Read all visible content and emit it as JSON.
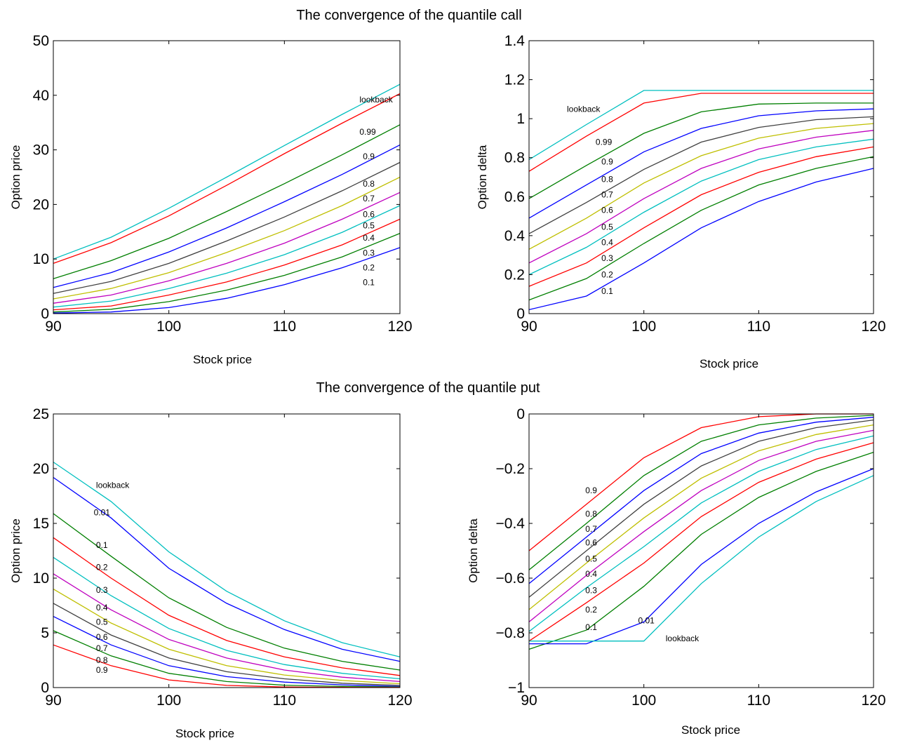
{
  "figure": {
    "title_call": "The convergence of the quantile call",
    "title_put": "The convergence of the quantile put"
  },
  "colors": {
    "cyan": "#00BFBF",
    "red": "#FF0000",
    "green": "#007F00",
    "blue": "#0000FF",
    "gray": "#404040",
    "yellow": "#BFBF00",
    "magenta": "#BF00BF"
  },
  "chart_data": [
    {
      "type": "line",
      "xlabel": "Stock price",
      "ylabel": "Option price",
      "xlim": [
        90,
        120
      ],
      "ylim": [
        0,
        50
      ],
      "xticks": [
        "90",
        "100",
        "110",
        "120"
      ],
      "yticks": [
        "0",
        "10",
        "20",
        "30",
        "40",
        "50"
      ],
      "x": [
        90,
        95,
        100,
        105,
        110,
        115,
        120
      ],
      "series": [
        {
          "name": "lookback",
          "color": "#00BFBF",
          "values": [
            10.0,
            14.0,
            19.3,
            25.0,
            30.8,
            36.5,
            42.0
          ]
        },
        {
          "name": "0.99",
          "color": "#FF0000",
          "values": [
            9.2,
            13.0,
            17.9,
            23.5,
            29.3,
            34.9,
            40.3
          ]
        },
        {
          "name": "0.9",
          "color": "#007F00",
          "values": [
            6.4,
            9.7,
            13.8,
            18.7,
            23.8,
            29.1,
            34.6
          ]
        },
        {
          "name": "0.8",
          "color": "#0000FF",
          "values": [
            4.8,
            7.5,
            11.3,
            15.7,
            20.5,
            25.5,
            30.9
          ]
        },
        {
          "name": "0.7",
          "color": "#404040",
          "values": [
            3.7,
            5.9,
            9.2,
            13.3,
            17.7,
            22.5,
            27.7
          ]
        },
        {
          "name": "0.6",
          "color": "#BFBF00",
          "values": [
            2.7,
            4.6,
            7.5,
            11.2,
            15.2,
            19.8,
            25.0
          ]
        },
        {
          "name": "0.5",
          "color": "#BF00BF",
          "values": [
            1.9,
            3.4,
            6.0,
            9.2,
            12.9,
            17.3,
            22.2
          ]
        },
        {
          "name": "0.4",
          "color": "#00BFBF",
          "values": [
            1.2,
            2.3,
            4.6,
            7.4,
            10.8,
            14.9,
            19.8
          ]
        },
        {
          "name": "0.3",
          "color": "#FF0000",
          "values": [
            0.7,
            1.4,
            3.4,
            5.8,
            8.9,
            12.6,
            17.3
          ]
        },
        {
          "name": "0.2",
          "color": "#007F00",
          "values": [
            0.3,
            0.8,
            2.2,
            4.3,
            7.0,
            10.4,
            14.7
          ]
        },
        {
          "name": "0.1",
          "color": "#0000FF",
          "values": [
            0.1,
            0.3,
            1.1,
            2.8,
            5.3,
            8.4,
            12.1
          ]
        }
      ],
      "curve_labels": [
        {
          "text": "lookback",
          "x": 116.5,
          "y": 39.2
        },
        {
          "text": "0.99",
          "x": 116.5,
          "y": 33.3
        },
        {
          "text": "0.9",
          "x": 116.8,
          "y": 28.8
        },
        {
          "text": "0.8",
          "x": 116.8,
          "y": 23.8
        },
        {
          "text": "0.7",
          "x": 116.8,
          "y": 21.1
        },
        {
          "text": "0.6",
          "x": 116.8,
          "y": 18.2
        },
        {
          "text": "0.5",
          "x": 116.8,
          "y": 16.1
        },
        {
          "text": "0.4",
          "x": 116.8,
          "y": 13.9
        },
        {
          "text": "0.3",
          "x": 116.8,
          "y": 11.1
        },
        {
          "text": "0.2",
          "x": 116.8,
          "y": 8.4
        },
        {
          "text": "0.1",
          "x": 116.8,
          "y": 5.7
        }
      ]
    },
    {
      "type": "line",
      "xlabel": "Stock price",
      "ylabel": "Option delta",
      "xlim": [
        90,
        120
      ],
      "ylim": [
        0,
        1.4
      ],
      "xticks": [
        "90",
        "100",
        "110",
        "120"
      ],
      "yticks": [
        "0",
        "0.2",
        "0.4",
        "0.6",
        "0.8",
        "1",
        "1.2",
        "1.4"
      ],
      "x": [
        90,
        95,
        100,
        105,
        110,
        115,
        120
      ],
      "series": [
        {
          "name": "lookback",
          "color": "#00BFBF",
          "values": [
            0.79,
            0.97,
            1.145,
            1.145,
            1.145,
            1.145,
            1.145
          ]
        },
        {
          "name": "0.99",
          "color": "#FF0000",
          "values": [
            0.73,
            0.91,
            1.08,
            1.13,
            1.13,
            1.13,
            1.13
          ]
        },
        {
          "name": "0.9",
          "color": "#007F00",
          "values": [
            0.59,
            0.76,
            0.925,
            1.035,
            1.075,
            1.08,
            1.08
          ]
        },
        {
          "name": "0.8",
          "color": "#0000FF",
          "values": [
            0.49,
            0.66,
            0.83,
            0.95,
            1.015,
            1.04,
            1.05
          ]
        },
        {
          "name": "0.7",
          "color": "#404040",
          "values": [
            0.41,
            0.57,
            0.74,
            0.88,
            0.955,
            0.995,
            1.01
          ]
        },
        {
          "name": "0.6",
          "color": "#BFBF00",
          "values": [
            0.33,
            0.49,
            0.67,
            0.81,
            0.9,
            0.95,
            0.975
          ]
        },
        {
          "name": "0.5",
          "color": "#BF00BF",
          "values": [
            0.26,
            0.41,
            0.59,
            0.745,
            0.845,
            0.905,
            0.94
          ]
        },
        {
          "name": "0.4",
          "color": "#00BFBF",
          "values": [
            0.2,
            0.34,
            0.52,
            0.68,
            0.79,
            0.855,
            0.895
          ]
        },
        {
          "name": "0.3",
          "color": "#FF0000",
          "values": [
            0.14,
            0.26,
            0.44,
            0.61,
            0.725,
            0.805,
            0.855
          ]
        },
        {
          "name": "0.2",
          "color": "#007F00",
          "values": [
            0.07,
            0.18,
            0.36,
            0.53,
            0.66,
            0.745,
            0.805
          ]
        },
        {
          "name": "0.1",
          "color": "#0000FF",
          "values": [
            0.02,
            0.09,
            0.26,
            0.44,
            0.575,
            0.675,
            0.745
          ]
        }
      ],
      "curve_labels": [
        {
          "text": "lookback",
          "x": 93.3,
          "y": 1.05
        },
        {
          "text": "0.99",
          "x": 95.8,
          "y": 0.88
        },
        {
          "text": "0.9",
          "x": 96.3,
          "y": 0.78
        },
        {
          "text": "0.8",
          "x": 96.3,
          "y": 0.69
        },
        {
          "text": "0.7",
          "x": 96.3,
          "y": 0.61
        },
        {
          "text": "0.6",
          "x": 96.3,
          "y": 0.53
        },
        {
          "text": "0.5",
          "x": 96.3,
          "y": 0.445
        },
        {
          "text": "0.4",
          "x": 96.3,
          "y": 0.365
        },
        {
          "text": "0.3",
          "x": 96.3,
          "y": 0.285
        },
        {
          "text": "0.2",
          "x": 96.3,
          "y": 0.2
        },
        {
          "text": "0.1",
          "x": 96.3,
          "y": 0.115
        }
      ]
    },
    {
      "type": "line",
      "xlabel": "Stock price",
      "ylabel": "Option price",
      "xlim": [
        90,
        120
      ],
      "ylim": [
        0,
        25
      ],
      "xticks": [
        "90",
        "100",
        "110",
        "120"
      ],
      "yticks": [
        "0",
        "5",
        "10",
        "15",
        "20",
        "25"
      ],
      "x": [
        90,
        95,
        100,
        105,
        110,
        115,
        120
      ],
      "series": [
        {
          "name": "lookback",
          "color": "#00BFBF",
          "values": [
            20.6,
            17.0,
            12.4,
            8.8,
            6.1,
            4.1,
            2.8
          ]
        },
        {
          "name": "0.01",
          "color": "#0000FF",
          "values": [
            19.2,
            15.5,
            10.9,
            7.7,
            5.3,
            3.5,
            2.4
          ]
        },
        {
          "name": "0.1",
          "color": "#007F00",
          "values": [
            15.9,
            12.0,
            8.2,
            5.5,
            3.6,
            2.4,
            1.6
          ]
        },
        {
          "name": "0.2",
          "color": "#FF0000",
          "values": [
            13.7,
            10.0,
            6.6,
            4.3,
            2.8,
            1.8,
            1.1
          ]
        },
        {
          "name": "0.3",
          "color": "#00BFBF",
          "values": [
            11.9,
            8.4,
            5.4,
            3.4,
            2.1,
            1.3,
            0.8
          ]
        },
        {
          "name": "0.4",
          "color": "#BF00BF",
          "values": [
            10.4,
            7.1,
            4.4,
            2.7,
            1.6,
            0.95,
            0.55
          ]
        },
        {
          "name": "0.5",
          "color": "#BFBF00",
          "values": [
            9.0,
            5.9,
            3.5,
            2.0,
            1.15,
            0.65,
            0.35
          ]
        },
        {
          "name": "0.6",
          "color": "#404040",
          "values": [
            7.7,
            4.8,
            2.7,
            1.45,
            0.8,
            0.4,
            0.2
          ]
        },
        {
          "name": "0.7",
          "color": "#0000FF",
          "values": [
            6.5,
            3.9,
            2.0,
            1.0,
            0.5,
            0.25,
            0.1
          ]
        },
        {
          "name": "0.8",
          "color": "#007F00",
          "values": [
            5.2,
            2.9,
            1.3,
            0.55,
            0.22,
            0.1,
            0.05
          ]
        },
        {
          "name": "0.9",
          "color": "#FF0000",
          "values": [
            3.9,
            2.0,
            0.7,
            0.2,
            0.05,
            0.02,
            0.01
          ]
        }
      ],
      "curve_labels": [
        {
          "text": "lookback",
          "x": 93.7,
          "y": 18.5
        },
        {
          "text": "0.01",
          "x": 93.5,
          "y": 16.0
        },
        {
          "text": "0.1",
          "x": 93.7,
          "y": 13.0
        },
        {
          "text": "0.2",
          "x": 93.7,
          "y": 11.0
        },
        {
          "text": "0.3",
          "x": 93.7,
          "y": 8.9
        },
        {
          "text": "0.4",
          "x": 93.7,
          "y": 7.3
        },
        {
          "text": "0.5",
          "x": 93.7,
          "y": 6.0
        },
        {
          "text": "0.6",
          "x": 93.7,
          "y": 4.6
        },
        {
          "text": "0.7",
          "x": 93.7,
          "y": 3.6
        },
        {
          "text": "0.8",
          "x": 93.7,
          "y": 2.5
        },
        {
          "text": "0.9",
          "x": 93.7,
          "y": 1.6
        }
      ]
    },
    {
      "type": "line",
      "xlabel": "Stock price",
      "ylabel": "Option delta",
      "xlim": [
        90,
        120
      ],
      "ylim": [
        -1,
        0
      ],
      "xticks": [
        "90",
        "100",
        "110",
        "120"
      ],
      "yticks": [
        "−1",
        "−0.8",
        "−0.6",
        "−0.4",
        "−0.2",
        "0"
      ],
      "x": [
        90,
        95,
        100,
        105,
        110,
        115,
        120
      ],
      "series": [
        {
          "name": "0.9",
          "color": "#FF0000",
          "values": [
            -0.5,
            -0.33,
            -0.16,
            -0.05,
            -0.01,
            0.0,
            0.0
          ]
        },
        {
          "name": "0.8",
          "color": "#007F00",
          "values": [
            -0.57,
            -0.4,
            -0.225,
            -0.1,
            -0.04,
            -0.015,
            -0.005
          ]
        },
        {
          "name": "0.7",
          "color": "#0000FF",
          "values": [
            -0.62,
            -0.45,
            -0.28,
            -0.145,
            -0.07,
            -0.03,
            -0.012
          ]
        },
        {
          "name": "0.6",
          "color": "#404040",
          "values": [
            -0.67,
            -0.5,
            -0.33,
            -0.19,
            -0.1,
            -0.05,
            -0.022
          ]
        },
        {
          "name": "0.5",
          "color": "#BFBF00",
          "values": [
            -0.715,
            -0.545,
            -0.38,
            -0.235,
            -0.135,
            -0.075,
            -0.04
          ]
        },
        {
          "name": "0.4",
          "color": "#BF00BF",
          "values": [
            -0.76,
            -0.59,
            -0.43,
            -0.28,
            -0.17,
            -0.1,
            -0.06
          ]
        },
        {
          "name": "0.3",
          "color": "#00BFBF",
          "values": [
            -0.795,
            -0.635,
            -0.485,
            -0.325,
            -0.21,
            -0.13,
            -0.08
          ]
        },
        {
          "name": "0.2",
          "color": "#FF0000",
          "values": [
            -0.83,
            -0.69,
            -0.545,
            -0.375,
            -0.25,
            -0.165,
            -0.105
          ]
        },
        {
          "name": "0.1",
          "color": "#007F00",
          "values": [
            -0.86,
            -0.79,
            -0.63,
            -0.44,
            -0.305,
            -0.21,
            -0.14
          ]
        },
        {
          "name": "0.01",
          "color": "#0000FF",
          "values": [
            -0.84,
            -0.84,
            -0.76,
            -0.55,
            -0.4,
            -0.285,
            -0.2
          ]
        },
        {
          "name": "lookback",
          "color": "#00BFBF",
          "values": [
            -0.83,
            -0.83,
            -0.83,
            -0.62,
            -0.45,
            -0.32,
            -0.225
          ]
        }
      ],
      "curve_labels": [
        {
          "text": "0.9",
          "x": 94.9,
          "y": -0.28
        },
        {
          "text": "0.8",
          "x": 94.9,
          "y": -0.365
        },
        {
          "text": "0.7",
          "x": 94.9,
          "y": -0.42
        },
        {
          "text": "0.6",
          "x": 94.9,
          "y": -0.47
        },
        {
          "text": "0.5",
          "x": 94.9,
          "y": -0.53
        },
        {
          "text": "0.4",
          "x": 94.9,
          "y": -0.585
        },
        {
          "text": "0.3",
          "x": 94.9,
          "y": -0.645
        },
        {
          "text": "0.2",
          "x": 94.9,
          "y": -0.715
        },
        {
          "text": "0.1",
          "x": 94.9,
          "y": -0.78
        },
        {
          "text": "0.01",
          "x": 99.5,
          "y": -0.755
        },
        {
          "text": "lookback",
          "x": 101.9,
          "y": -0.82
        }
      ]
    }
  ]
}
